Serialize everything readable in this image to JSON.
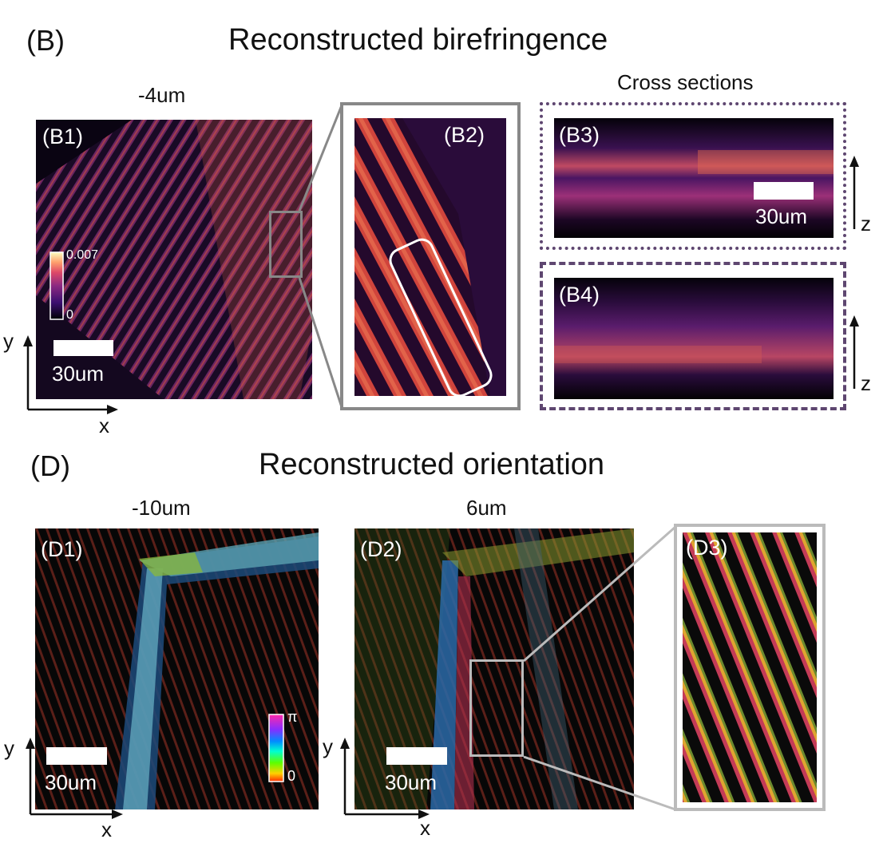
{
  "section_b": {
    "letter": "(B)",
    "title": "Reconstructed birefringence",
    "depth_label": "-4um",
    "cross_sections_label": "Cross sections",
    "panels": {
      "b1": "(B1)",
      "b2": "(B2)",
      "b3": "(B3)",
      "b4": "(B4)"
    },
    "colorbar": {
      "max": "0.007",
      "min": "0"
    },
    "scalebar_b1": "30um",
    "scalebar_b3": "30um",
    "axes": {
      "y": "y",
      "x": "x",
      "z3": "z",
      "z4": "z"
    }
  },
  "section_d": {
    "letter": "(D)",
    "title": "Reconstructed orientation",
    "depth_d1": "-10um",
    "depth_d2": "6um",
    "panels": {
      "d1": "(D1)",
      "d2": "(D2)",
      "d3": "(D3)"
    },
    "colorbar": {
      "max": "π",
      "min": "0"
    },
    "scalebar_d1": "30um",
    "scalebar_d2": "30um",
    "axes": {
      "y1": "y",
      "x1": "x",
      "y2": "y",
      "x2": "x"
    }
  },
  "colors": {
    "b2_frame": "#888888",
    "b3_frame": "#5e4670",
    "b4_frame": "#5e4670",
    "d3_frame": "#bbbbbb"
  }
}
